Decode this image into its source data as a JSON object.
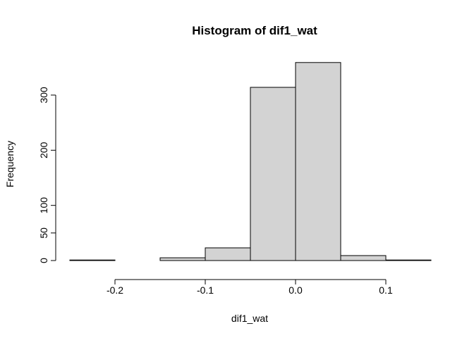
{
  "chart_data": {
    "type": "bar",
    "title": "Histogram of dif1_wat",
    "xlabel": "dif1_wat",
    "ylabel": "Frequency",
    "x_ticks": [
      -0.2,
      -0.1,
      0.0,
      0.1
    ],
    "x_tick_labels": [
      "-0.2",
      "-0.1",
      "0.0",
      "0.1"
    ],
    "y_ticks": [
      0,
      50,
      100,
      200,
      300
    ],
    "y_tick_labels": [
      "0",
      "50",
      "100",
      "200",
      "300"
    ],
    "xlim": [
      -0.25,
      0.15
    ],
    "ylim": [
      0,
      360
    ],
    "bins": [
      {
        "start": -0.25,
        "end": -0.2,
        "count": 1
      },
      {
        "start": -0.2,
        "end": -0.15,
        "count": 0
      },
      {
        "start": -0.15,
        "end": -0.1,
        "count": 5
      },
      {
        "start": -0.1,
        "end": -0.05,
        "count": 23
      },
      {
        "start": -0.05,
        "end": 0.0,
        "count": 314
      },
      {
        "start": 0.0,
        "end": 0.05,
        "count": 359
      },
      {
        "start": 0.05,
        "end": 0.1,
        "count": 9
      },
      {
        "start": 0.1,
        "end": 0.15,
        "count": 1
      }
    ],
    "bar_fill": "#d3d3d3",
    "bar_stroke": "#000000",
    "grid": false
  }
}
